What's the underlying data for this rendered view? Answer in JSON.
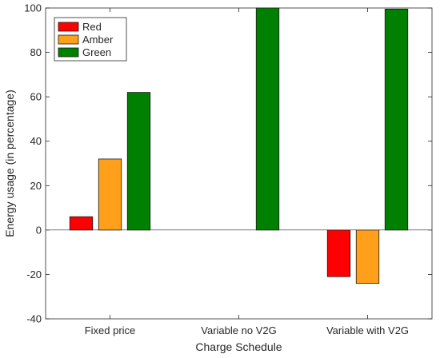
{
  "chart_data": {
    "type": "bar",
    "title": "",
    "xlabel": "Charge Schedule",
    "ylabel": "Energy usage (in percentage)",
    "categories": [
      "Fixed price",
      "Variable no V2G",
      "Variable with V2G"
    ],
    "ylim": [
      -40,
      100
    ],
    "yticks": [
      "-40",
      "-20",
      "0",
      "20",
      "40",
      "60",
      "80",
      "100"
    ],
    "grid": false,
    "legend_position": "top-left",
    "series": [
      {
        "name": "Red",
        "color": "#ff0000",
        "values": [
          6,
          0,
          -21
        ]
      },
      {
        "name": "Amber",
        "color": "#ff9f1a",
        "values": [
          32,
          0,
          -24
        ]
      },
      {
        "name": "Green",
        "color": "#008000",
        "values": [
          62,
          100,
          99.5
        ]
      }
    ]
  }
}
